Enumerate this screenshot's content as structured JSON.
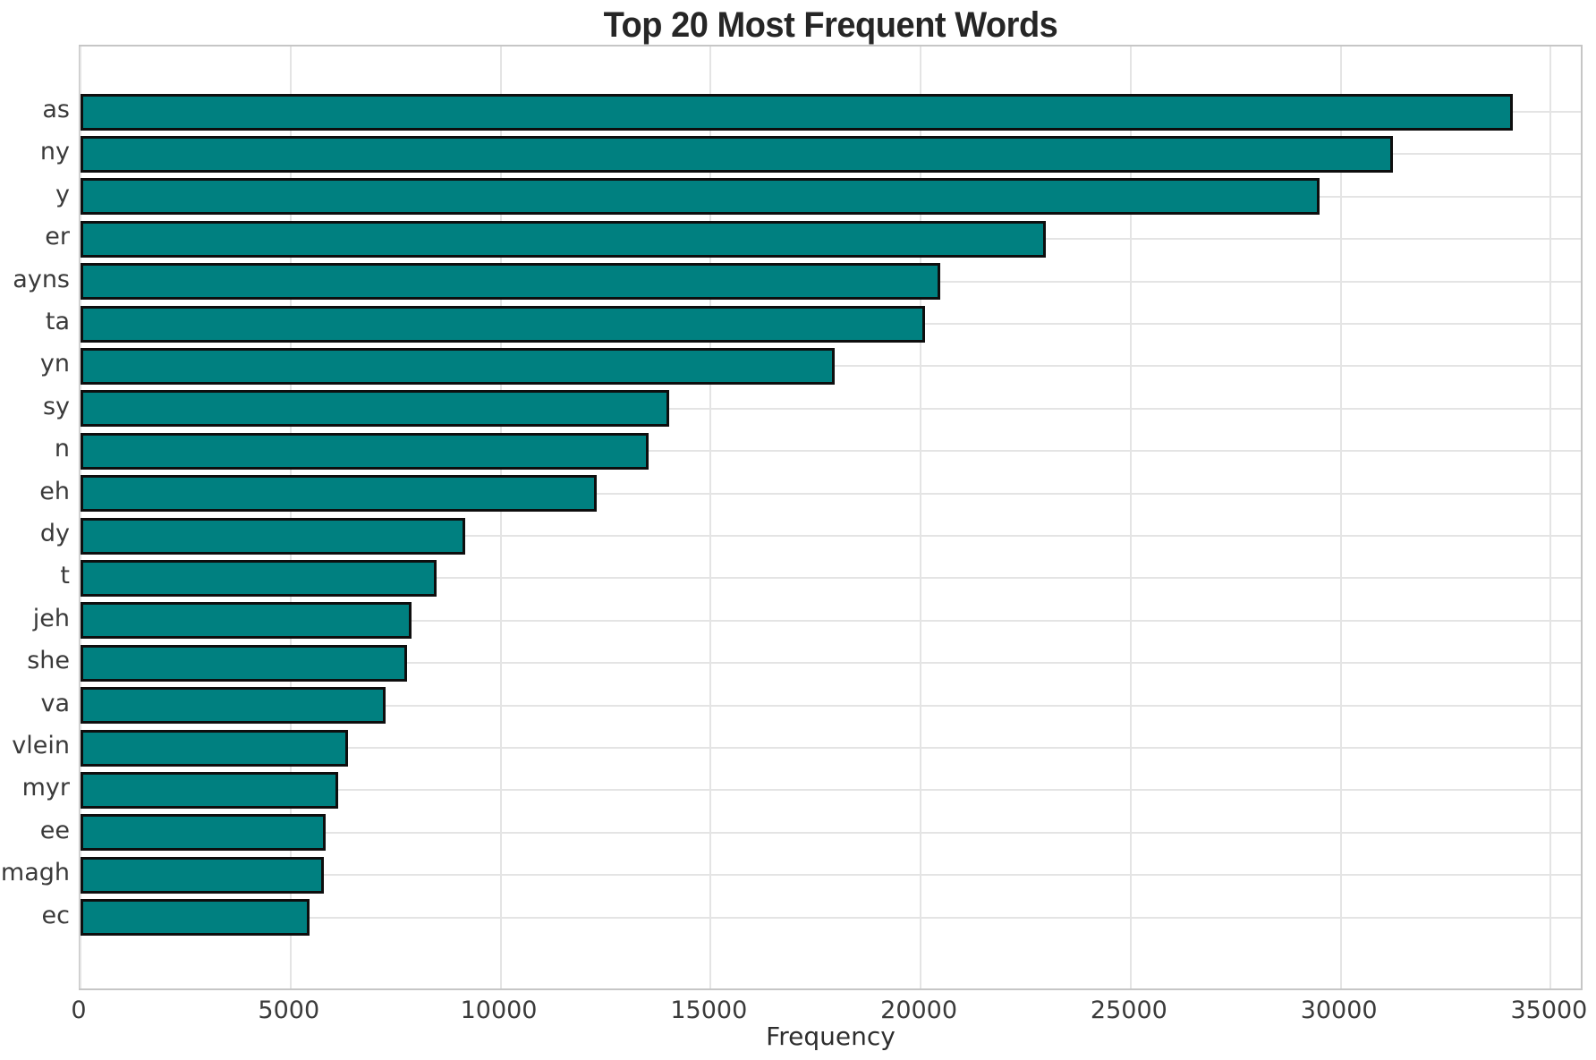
{
  "title": "Top 20 Most Frequent Words",
  "chart_data": {
    "type": "bar",
    "orientation": "horizontal",
    "title": "Top 20 Most Frequent Words",
    "xlabel": "Frequency",
    "ylabel": "",
    "categories": [
      "as",
      "ny",
      "y",
      "er",
      "ayns",
      "ta",
      "yn",
      "sy",
      "n",
      "eh",
      "dy",
      "t",
      "jeh",
      "she",
      "va",
      "vlein",
      "myr",
      "ee",
      "magh",
      "ec"
    ],
    "values": [
      34100,
      31250,
      29500,
      22970,
      20470,
      20110,
      17950,
      14020,
      13520,
      12280,
      9160,
      8480,
      7880,
      7780,
      7270,
      6360,
      6130,
      5830,
      5790,
      5450
    ],
    "xlim": [
      0,
      35800
    ],
    "xticks": [
      0,
      5000,
      10000,
      15000,
      20000,
      25000,
      30000,
      35000
    ],
    "xtick_labels": [
      "0",
      "5000",
      "10000",
      "15000",
      "20000",
      "25000",
      "30000",
      "35000"
    ],
    "grid": true,
    "legend": "none",
    "bar_color": "#008080",
    "bar_edge_color": "#0e0e0e",
    "grid_color": "#e4e4e4",
    "spine_color": "#c6c6c6",
    "label_color": "#3a3a3a",
    "title_color": "#262626"
  }
}
